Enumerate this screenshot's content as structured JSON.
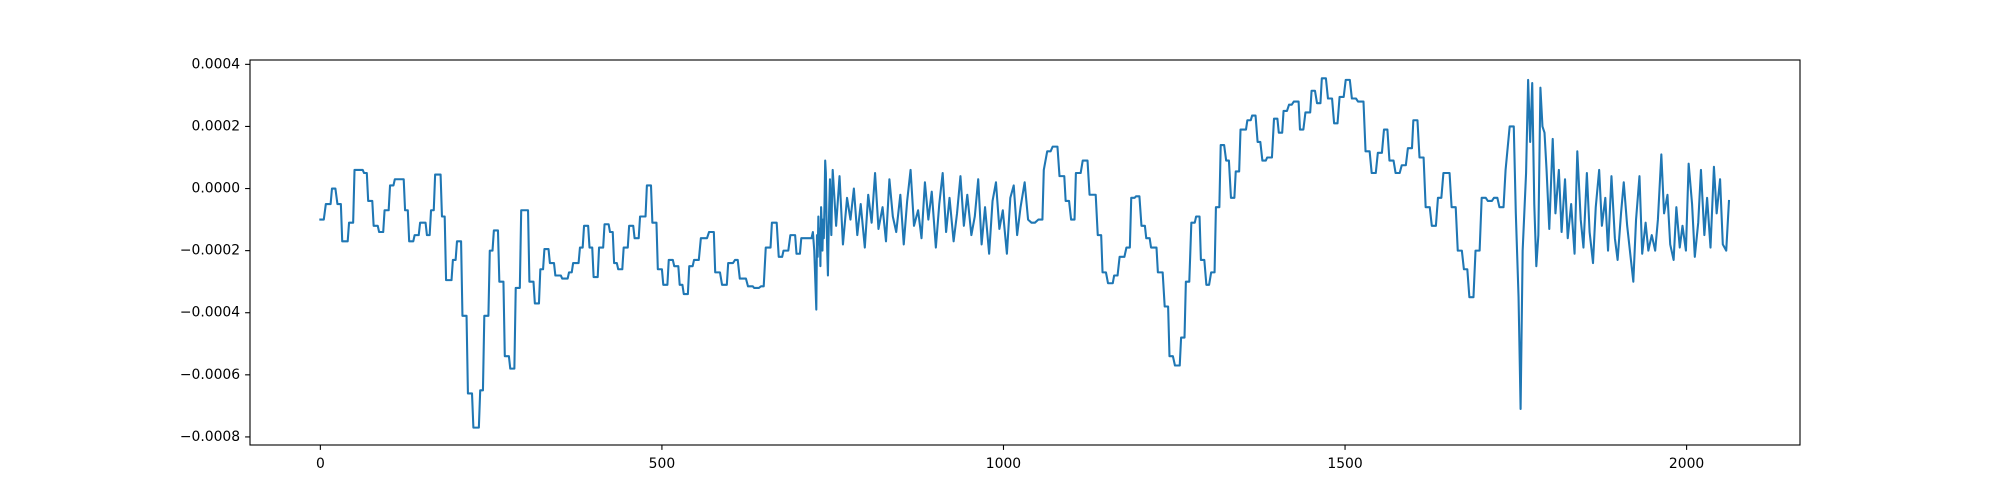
{
  "chart_data": {
    "type": "line",
    "color": "#1f77b4",
    "xlim": [
      -103,
      2166
    ],
    "ylim": [
      -0.000826,
      0.000414
    ],
    "xticks": [
      0,
      500,
      1000,
      1500,
      2000
    ],
    "yticks": [
      {
        "value": -0.0008,
        "label": "−0.0008"
      },
      {
        "value": -0.0006,
        "label": "−0.0006"
      },
      {
        "value": -0.0004,
        "label": "−0.0004"
      },
      {
        "value": -0.0002,
        "label": "−0.0002"
      },
      {
        "value": 0,
        "label": "0.0000"
      },
      {
        "value": 0.0002,
        "label": "0.0002"
      },
      {
        "value": 0.0004,
        "label": "0.0004"
      }
    ],
    "x": [
      0,
      5,
      8,
      15,
      17,
      22,
      25,
      30,
      32,
      40,
      42,
      48,
      50,
      62,
      64,
      68,
      70,
      76,
      78,
      84,
      86,
      92,
      94,
      100,
      102,
      107,
      109,
      122,
      124,
      128,
      130,
      136,
      138,
      144,
      146,
      154,
      156,
      160,
      162,
      166,
      168,
      176,
      178,
      182,
      184,
      192,
      194,
      198,
      200,
      206,
      208,
      214,
      216,
      222,
      224,
      232,
      234,
      238,
      240,
      246,
      248,
      252,
      254,
      260,
      262,
      268,
      270,
      276,
      278,
      284,
      286,
      292,
      294,
      304,
      306,
      312,
      314,
      320,
      322,
      326,
      328,
      334,
      336,
      342,
      344,
      352,
      354,
      362,
      364,
      368,
      370,
      378,
      380,
      384,
      386,
      392,
      394,
      398,
      400,
      406,
      408,
      414,
      416,
      422,
      424,
      428,
      430,
      434,
      436,
      442,
      444,
      450,
      452,
      458,
      460,
      466,
      468,
      476,
      478,
      484,
      486,
      492,
      494,
      500,
      502,
      508,
      510,
      516,
      518,
      524,
      526,
      530,
      532,
      538,
      540,
      545,
      547,
      554,
      557,
      566,
      569,
      576,
      578,
      585,
      588,
      595,
      597,
      604,
      607,
      611,
      614,
      623,
      626,
      633,
      635,
      642,
      645,
      649,
      652,
      659,
      661,
      668,
      671,
      676,
      678,
      685,
      688,
      695,
      697,
      702,
      704,
      719,
      721,
      723,
      726,
      727,
      728,
      729,
      730,
      731,
      732,
      733,
      734,
      735,
      736,
      737,
      738,
      739,
      740,
      741,
      742,
      743,
      744,
      745,
      746,
      747,
      748,
      749,
      750,
      755,
      760,
      765,
      771,
      776,
      781,
      786,
      791,
      797,
      802,
      807,
      812,
      817,
      823,
      828,
      833,
      838,
      843,
      849,
      854,
      859,
      864,
      869,
      875,
      880,
      885,
      890,
      895,
      901,
      906,
      911,
      916,
      921,
      927,
      932,
      937,
      942,
      947,
      953,
      958,
      963,
      968,
      973,
      979,
      984,
      989,
      994,
      999,
      1005,
      1010,
      1015,
      1020,
      1025,
      1031,
      1036,
      1041,
      1046,
      1051,
      1057,
      1059,
      1064,
      1069,
      1072,
      1079,
      1082,
      1089,
      1091,
      1096,
      1099,
      1104,
      1106,
      1113,
      1116,
      1123,
      1126,
      1135,
      1138,
      1143,
      1145,
      1150,
      1153,
      1160,
      1162,
      1167,
      1170,
      1177,
      1180,
      1185,
      1187,
      1192,
      1194,
      1199,
      1202,
      1207,
      1209,
      1214,
      1216,
      1224,
      1226,
      1233,
      1236,
      1241,
      1243,
      1248,
      1251,
      1258,
      1260,
      1265,
      1267,
      1272,
      1275,
      1280,
      1282,
      1287,
      1289,
      1294,
      1297,
      1301,
      1304,
      1309,
      1311,
      1316,
      1318,
      1323,
      1326,
      1330,
      1333,
      1338,
      1340,
      1345,
      1347,
      1355,
      1357,
      1362,
      1364,
      1369,
      1372,
      1376,
      1379,
      1384,
      1386,
      1393,
      1396,
      1401,
      1403,
      1408,
      1410,
      1415,
      1418,
      1422,
      1425,
      1432,
      1434,
      1439,
      1442,
      1449,
      1451,
      1456,
      1459,
      1464,
      1466,
      1472,
      1475,
      1481,
      1484,
      1489,
      1492,
      1498,
      1501,
      1507,
      1510,
      1516,
      1519,
      1527,
      1530,
      1536,
      1539,
      1545,
      1548,
      1554,
      1557,
      1562,
      1565,
      1571,
      1574,
      1580,
      1583,
      1589,
      1592,
      1598,
      1600,
      1606,
      1609,
      1615,
      1618,
      1624,
      1627,
      1633,
      1636,
      1641,
      1644,
      1653,
      1656,
      1662,
      1665,
      1671,
      1674,
      1679,
      1682,
      1688,
      1691,
      1697,
      1700,
      1706,
      1709,
      1715,
      1718,
      1723,
      1726,
      1732,
      1735,
      1741,
      1747,
      1750,
      1754,
      1757,
      1760,
      1765,
      1768,
      1771,
      1774,
      1777,
      1780,
      1783,
      1786,
      1789,
      1792,
      1795,
      1799,
      1804,
      1808,
      1813,
      1817,
      1822,
      1826,
      1831,
      1836,
      1840,
      1845,
      1849,
      1854,
      1858,
      1863,
      1867,
      1872,
      1876,
      1881,
      1885,
      1890,
      1895,
      1899,
      1904,
      1908,
      1913,
      1917,
      1922,
      1926,
      1931,
      1935,
      1940,
      1944,
      1949,
      1954,
      1958,
      1963,
      1967,
      1972,
      1976,
      1981,
      1985,
      1990,
      1994,
      1999,
      2003,
      2008,
      2012,
      2017,
      2021,
      2026,
      2030,
      2035,
      2040,
      2044,
      2049,
      2053,
      2058,
      2062
    ],
    "values": [
      -0.0001,
      -0.0001,
      -5e-05,
      -5e-05,
      0,
      0,
      -5e-05,
      -5e-05,
      -0.00017,
      -0.00017,
      -0.00011,
      -0.00011,
      6e-05,
      6e-05,
      5e-05,
      5e-05,
      -4e-05,
      -4e-05,
      -0.00012,
      -0.00012,
      -0.00014,
      -0.00014,
      -7e-05,
      -7e-05,
      1e-05,
      1e-05,
      3e-05,
      3e-05,
      -7e-05,
      -7e-05,
      -0.00017,
      -0.00017,
      -0.00015,
      -0.00015,
      -0.00011,
      -0.00011,
      -0.00015,
      -0.00015,
      -7e-05,
      -7e-05,
      4.5e-05,
      4.5e-05,
      -9e-05,
      -9e-05,
      -0.000295,
      -0.000295,
      -0.00023,
      -0.00023,
      -0.00017,
      -0.00017,
      -0.00041,
      -0.00041,
      -0.00066,
      -0.00066,
      -0.00077,
      -0.00077,
      -0.00065,
      -0.00065,
      -0.00041,
      -0.00041,
      -0.0002,
      -0.0002,
      -0.000135,
      -0.000135,
      -0.0003,
      -0.0003,
      -0.00054,
      -0.00054,
      -0.00058,
      -0.00058,
      -0.00032,
      -0.00032,
      -7e-05,
      -7e-05,
      -0.0003,
      -0.0003,
      -0.00037,
      -0.00037,
      -0.00026,
      -0.00026,
      -0.000195,
      -0.000195,
      -0.00024,
      -0.00024,
      -0.00028,
      -0.00028,
      -0.00029,
      -0.00029,
      -0.00027,
      -0.00027,
      -0.00024,
      -0.00024,
      -0.00019,
      -0.00019,
      -0.00012,
      -0.00012,
      -0.00019,
      -0.00019,
      -0.000285,
      -0.000285,
      -0.00019,
      -0.00019,
      -0.000115,
      -0.000115,
      -0.00014,
      -0.00014,
      -0.00024,
      -0.00024,
      -0.00026,
      -0.00026,
      -0.00019,
      -0.00019,
      -0.00012,
      -0.00012,
      -0.00016,
      -0.00016,
      -9e-05,
      -9e-05,
      1e-05,
      1e-05,
      -0.00011,
      -0.00011,
      -0.00026,
      -0.00026,
      -0.00031,
      -0.00031,
      -0.00023,
      -0.00023,
      -0.00025,
      -0.00025,
      -0.00031,
      -0.00031,
      -0.00034,
      -0.00034,
      -0.00025,
      -0.00025,
      -0.00023,
      -0.00023,
      -0.00016,
      -0.00016,
      -0.00014,
      -0.00014,
      -0.00027,
      -0.00027,
      -0.00031,
      -0.00031,
      -0.00024,
      -0.00024,
      -0.00023,
      -0.00023,
      -0.00029,
      -0.00029,
      -0.000315,
      -0.000315,
      -0.00032,
      -0.00032,
      -0.000315,
      -0.000315,
      -0.00019,
      -0.00019,
      -0.00011,
      -0.00011,
      -0.00022,
      -0.00022,
      -0.0002,
      -0.0002,
      -0.00015,
      -0.00015,
      -0.00021,
      -0.00021,
      -0.00016,
      -0.00016,
      -0.00014,
      -0.0002,
      -0.00039,
      -0.00015,
      -0.00022,
      -9e-05,
      -0.00018,
      -0.00013,
      -0.00025,
      -6e-05,
      -0.00012,
      -0.0002,
      -0.0001,
      -0.00016,
      -5e-05,
      9e-05,
      5e-05,
      -0.0001,
      -0.0002,
      -0.00028,
      -0.00015,
      -5e-05,
      3e-05,
      -8e-05,
      -0.00015,
      -3e-05,
      6e-05,
      -0.00012,
      4e-05,
      -0.00018,
      -3e-05,
      -0.0001,
      0,
      -0.00015,
      -5e-05,
      -0.00019,
      -2e-05,
      -0.00011,
      5e-05,
      -0.00013,
      -6e-05,
      -0.00017,
      3e-05,
      -9e-05,
      -0.00014,
      -2e-05,
      -0.00018,
      -4e-05,
      6e-05,
      -0.00012,
      -7e-05,
      -0.00016,
      2e-05,
      -0.0001,
      -1e-05,
      -0.00019,
      -5e-05,
      5e-05,
      -0.00014,
      -3e-05,
      -0.00017,
      -8e-05,
      4e-05,
      -0.00012,
      -2e-05,
      -0.00015,
      -9e-05,
      3e-05,
      -0.00018,
      -6e-05,
      -0.00021,
      -4e-05,
      2e-05,
      -0.00013,
      -7e-05,
      -0.00021,
      -3e-05,
      1e-05,
      -0.00015,
      -6e-05,
      2e-05,
      -0.0001,
      -0.00011,
      -0.00011,
      -0.0001,
      -0.0001,
      6e-05,
      0.00012,
      0.00012,
      0.000135,
      0.000135,
      4e-05,
      4e-05,
      -4e-05,
      -4e-05,
      -0.0001,
      -0.0001,
      5e-05,
      5e-05,
      9e-05,
      9e-05,
      -2e-05,
      -2e-05,
      -0.00015,
      -0.00015,
      -0.00027,
      -0.00027,
      -0.000305,
      -0.000305,
      -0.00028,
      -0.00028,
      -0.00022,
      -0.00022,
      -0.00019,
      -0.00019,
      -3e-05,
      -3e-05,
      -2.5e-05,
      -2.5e-05,
      -0.00012,
      -0.00012,
      -0.00016,
      -0.00016,
      -0.00019,
      -0.00019,
      -0.00027,
      -0.00027,
      -0.00038,
      -0.00038,
      -0.00054,
      -0.00054,
      -0.00057,
      -0.00057,
      -0.00048,
      -0.00048,
      -0.0003,
      -0.0003,
      -0.00011,
      -0.00011,
      -9e-05,
      -9e-05,
      -0.00023,
      -0.00023,
      -0.00031,
      -0.00031,
      -0.00027,
      -0.00027,
      -6e-05,
      -6e-05,
      0.00014,
      0.00014,
      9e-05,
      9e-05,
      -3e-05,
      -3e-05,
      5.5e-05,
      5.5e-05,
      0.00019,
      0.00019,
      0.00022,
      0.00022,
      0.000235,
      0.000235,
      0.00015,
      0.00015,
      9e-05,
      9e-05,
      0.0001,
      0.0001,
      0.000225,
      0.000225,
      0.00018,
      0.00018,
      0.00025,
      0.00025,
      0.00027,
      0.00027,
      0.00028,
      0.00028,
      0.00019,
      0.00019,
      0.000245,
      0.000245,
      0.000315,
      0.000315,
      0.000275,
      0.000275,
      0.000355,
      0.000355,
      0.00029,
      0.00029,
      0.00021,
      0.00021,
      0.000295,
      0.000295,
      0.00035,
      0.00035,
      0.00029,
      0.00029,
      0.00028,
      0.00028,
      0.00012,
      0.00012,
      5e-05,
      5e-05,
      0.000115,
      0.000115,
      0.00019,
      0.00019,
      9e-05,
      9e-05,
      5e-05,
      5e-05,
      7.5e-05,
      7.5e-05,
      0.00013,
      0.00013,
      0.00022,
      0.00022,
      0.0001,
      0.0001,
      -6e-05,
      -6e-05,
      -0.00012,
      -0.00012,
      -3e-05,
      -3e-05,
      5e-05,
      5e-05,
      -6e-05,
      -6e-05,
      -0.0002,
      -0.0002,
      -0.00026,
      -0.00026,
      -0.00035,
      -0.00035,
      -0.0002,
      -0.0002,
      -3e-05,
      -3e-05,
      -4e-05,
      -4e-05,
      -3e-05,
      -3e-05,
      -6e-05,
      -6e-05,
      6e-05,
      0.0002,
      0.0002,
      -8e-05,
      -0.00035,
      -0.00071,
      -0.0002,
      5e-05,
      0.00035,
      0.00015,
      0.00034,
      -5e-05,
      -0.00025,
      -0.00015,
      0.000325,
      0.0002,
      0.00018,
      6e-05,
      -0.00013,
      0.00016,
      -8e-05,
      6e-05,
      -0.00014,
      3e-05,
      -0.00016,
      -5e-05,
      -0.00021,
      0.00012,
      -0.0001,
      -0.00019,
      5e-05,
      -0.00014,
      -0.00024,
      -6e-05,
      6e-05,
      -0.00012,
      -3e-05,
      -0.0002,
      4e-05,
      -0.00016,
      -0.00023,
      -8e-05,
      2e-05,
      -0.00012,
      -0.0002,
      -0.0003,
      -0.0001,
      4e-05,
      -0.00021,
      -0.00011,
      -0.0002,
      -0.00015,
      -0.0002,
      -0.0001,
      0.00011,
      -8e-05,
      -2e-05,
      -0.00018,
      -0.00023,
      -6e-05,
      -0.00019,
      -0.00012,
      -0.0002,
      8e-05,
      -5e-05,
      -0.00022,
      -0.00011,
      6e-05,
      -0.00015,
      -3e-05,
      -0.00019,
      7e-05,
      -8e-05,
      3e-05,
      -0.00018,
      -0.0002,
      -4e-05
    ]
  }
}
